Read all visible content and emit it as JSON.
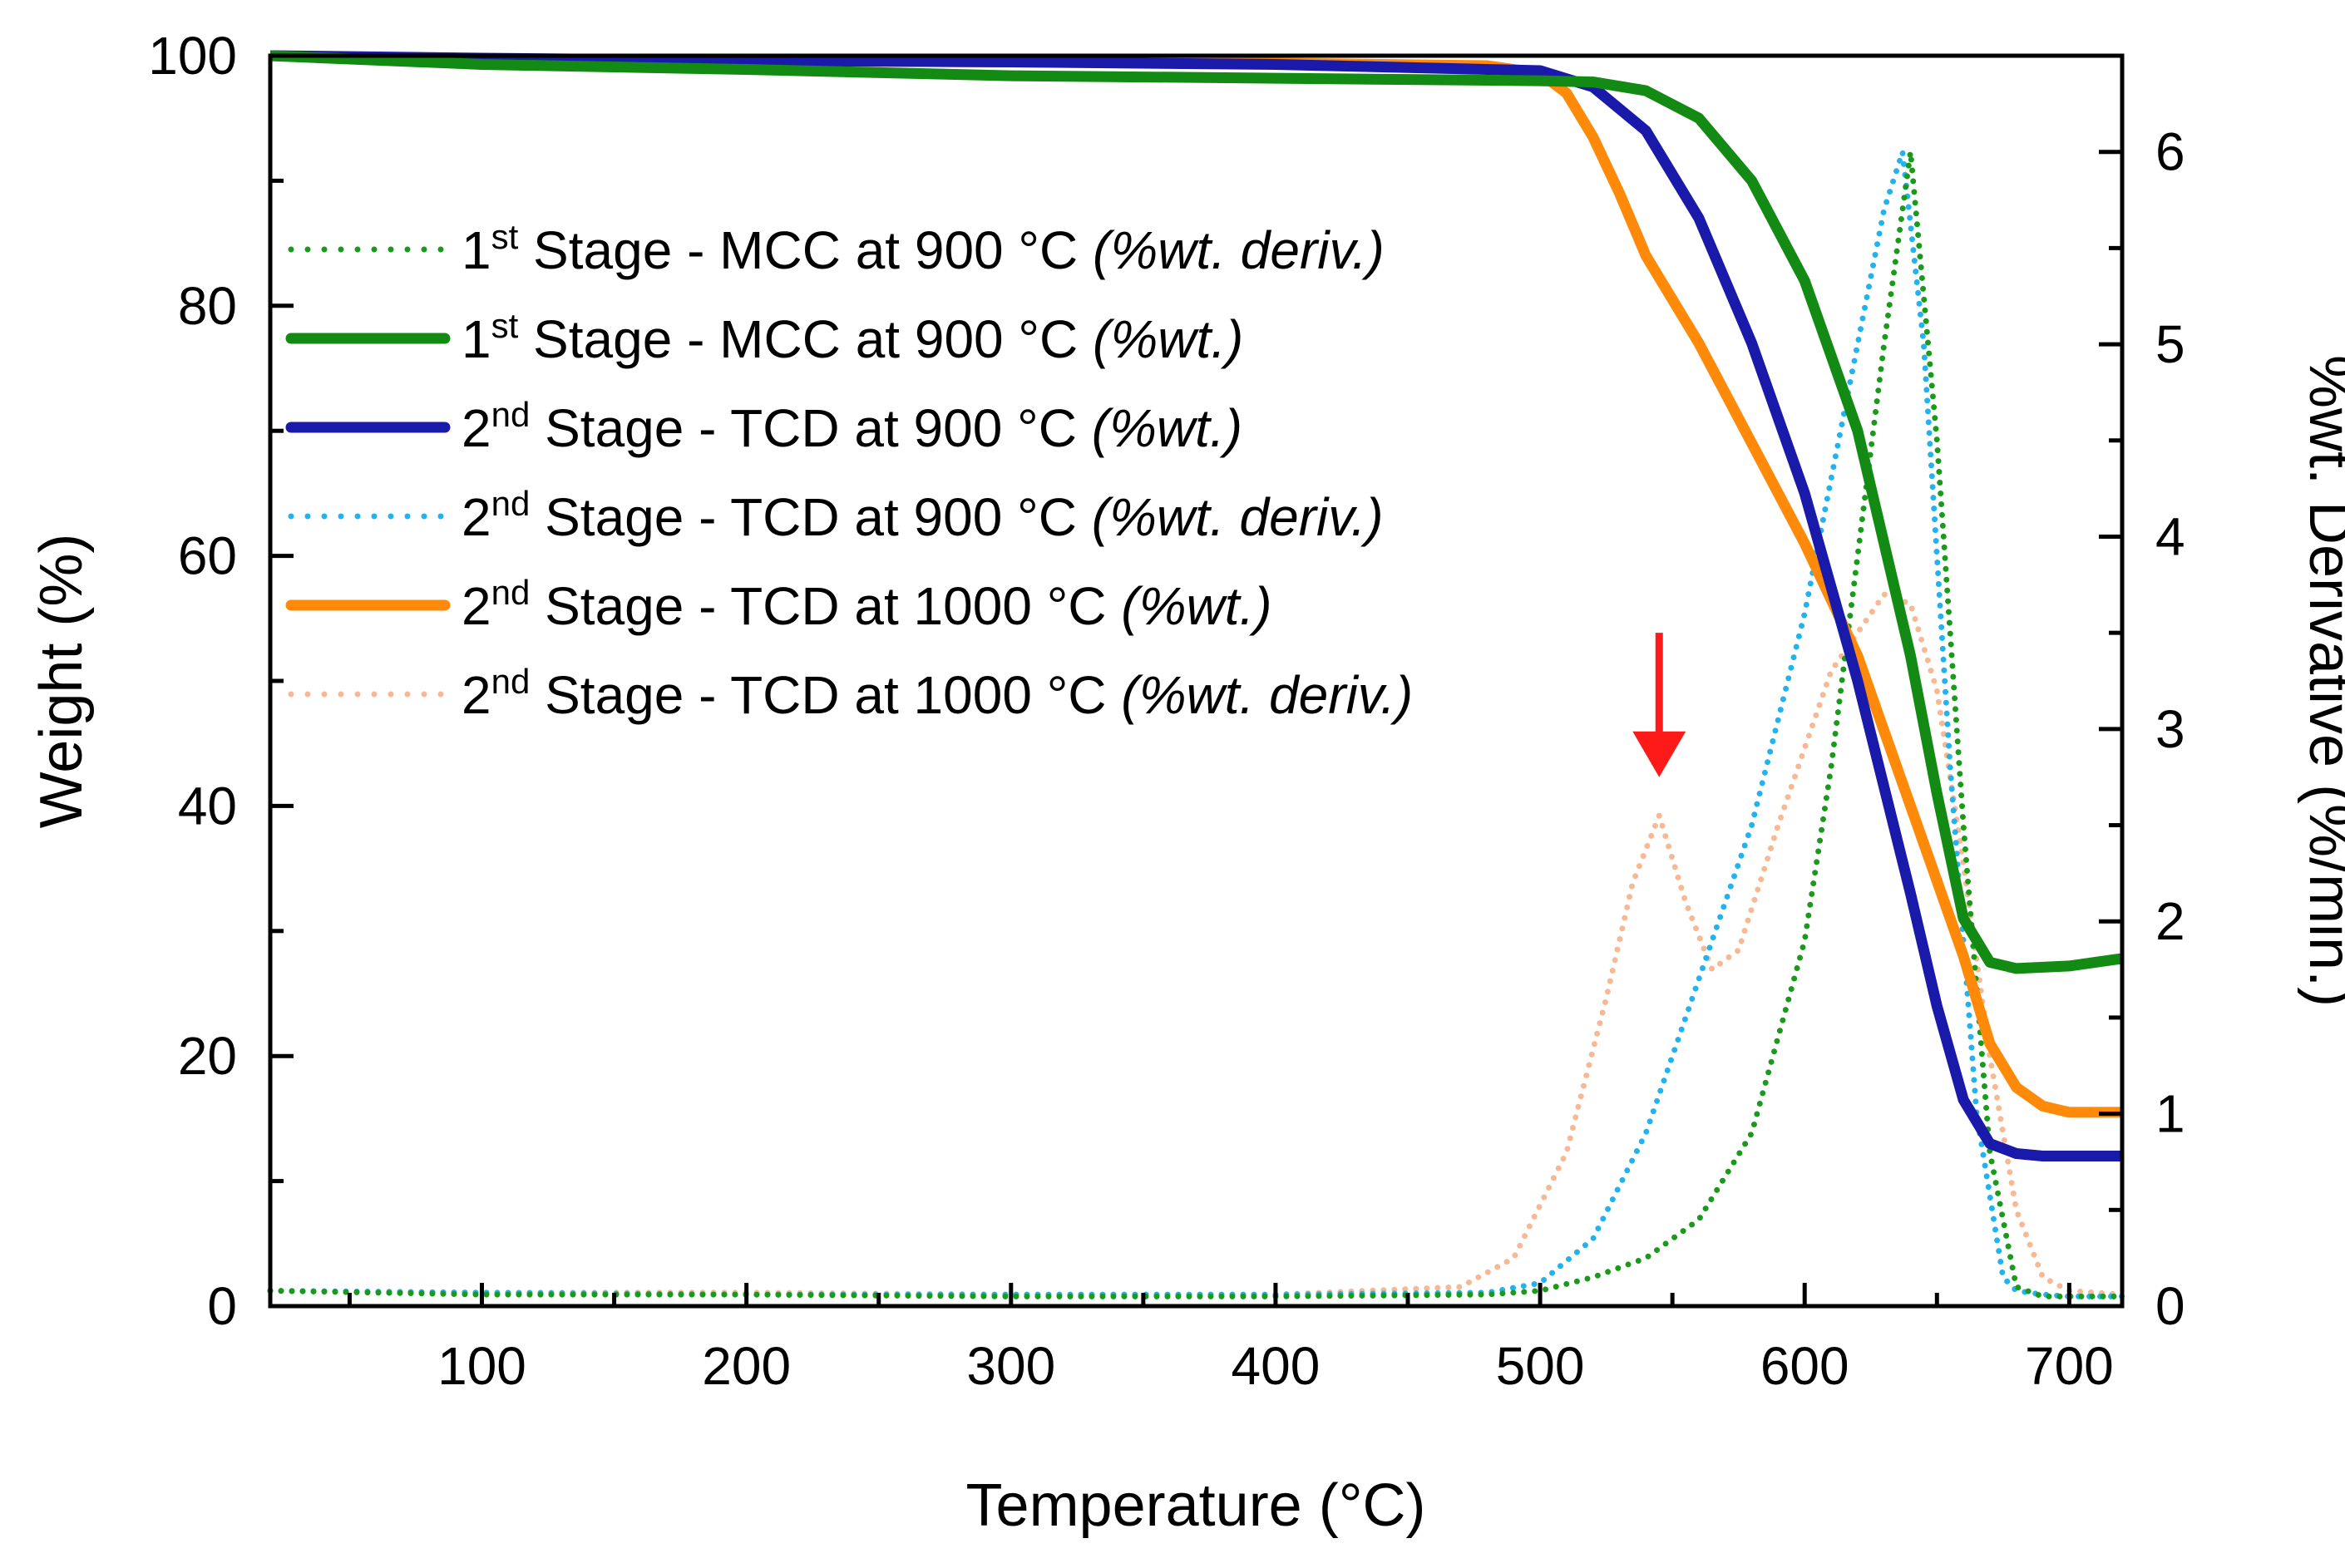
{
  "chart_data": {
    "type": "line",
    "xlabel": "Temperature (°C)",
    "ylabel": "Weight (%)",
    "y2label": "%wt. Derivative (%/min.)",
    "xlim": [
      20,
      720
    ],
    "ylim": [
      0,
      100
    ],
    "y2lim": [
      0,
      6.5
    ],
    "xticks": [
      100,
      200,
      300,
      400,
      500,
      600,
      700
    ],
    "yticks": [
      0,
      20,
      40,
      60,
      80,
      100
    ],
    "y2ticks": [
      0,
      1,
      2,
      3,
      4,
      5,
      6
    ],
    "legend_position": "upper-left",
    "series": [
      {
        "id": "mcc_deriv",
        "axis": "right",
        "style": "dotted",
        "color": "#1a9a1a",
        "label_prefix": "1",
        "label_sup": "st",
        "label_main": " Stage - MCC at 900 °C ",
        "label_note": "(%wt. deriv.)",
        "x": [
          20,
          100,
          200,
          300,
          400,
          480,
          500,
          520,
          540,
          560,
          580,
          600,
          610,
          620,
          630,
          640,
          650,
          660,
          670,
          680,
          690,
          700,
          720
        ],
        "y": [
          0.08,
          0.06,
          0.06,
          0.05,
          0.05,
          0.06,
          0.08,
          0.15,
          0.25,
          0.45,
          0.9,
          1.9,
          2.8,
          3.9,
          5.0,
          6.0,
          4.5,
          2.5,
          0.8,
          0.1,
          0.05,
          0.05,
          0.05
        ]
      },
      {
        "id": "mcc_wt",
        "axis": "left",
        "style": "solid",
        "color": "#138a13",
        "label_prefix": "1",
        "label_sup": "st",
        "label_main": " Stage - MCC at 900 °C ",
        "label_note": "(%wt.)",
        "x": [
          20,
          100,
          200,
          300,
          400,
          500,
          520,
          540,
          560,
          580,
          600,
          620,
          640,
          650,
          660,
          670,
          680,
          700,
          720
        ],
        "y": [
          100,
          99.3,
          98.9,
          98.4,
          98.2,
          98.0,
          97.9,
          97.2,
          95.0,
          90.0,
          82.0,
          70.0,
          52.0,
          41.0,
          31.0,
          27.5,
          27.0,
          27.2,
          27.8
        ]
      },
      {
        "id": "tcd900_wt",
        "axis": "left",
        "style": "solid",
        "color": "#1919aa",
        "label_prefix": "2",
        "label_sup": "nd",
        "label_main": " Stage - TCD at 900 °C ",
        "label_note": "(%wt.)",
        "x": [
          20,
          100,
          200,
          300,
          400,
          500,
          520,
          540,
          560,
          580,
          600,
          620,
          640,
          650,
          660,
          670,
          680,
          690,
          700,
          720
        ],
        "y": [
          100,
          99.8,
          99.6,
          99.5,
          99.3,
          98.8,
          97.5,
          94.0,
          87.0,
          77.0,
          65.0,
          50.0,
          33.0,
          24.0,
          16.5,
          13.0,
          12.2,
          12.0,
          12.0,
          12.0
        ]
      },
      {
        "id": "tcd900_deriv",
        "axis": "right",
        "style": "dotted",
        "color": "#22b2ee",
        "label_prefix": "2",
        "label_sup": "nd",
        "label_main": " Stage - TCD at 900 °C ",
        "label_note": "(%wt. deriv.)",
        "x": [
          20,
          100,
          200,
          300,
          400,
          480,
          500,
          520,
          540,
          550,
          560,
          580,
          600,
          620,
          630,
          637,
          645,
          655,
          665,
          675,
          680,
          690,
          700,
          720
        ],
        "y": [
          0.08,
          0.07,
          0.06,
          0.06,
          0.06,
          0.07,
          0.12,
          0.35,
          0.9,
          1.3,
          1.7,
          2.5,
          3.6,
          5.0,
          5.7,
          6.0,
          5.0,
          2.8,
          1.0,
          0.15,
          0.08,
          0.06,
          0.05,
          0.05
        ]
      },
      {
        "id": "tcd1000_wt",
        "axis": "left",
        "style": "solid",
        "color": "#ff8a0a",
        "label_prefix": "2",
        "label_sup": "nd",
        "label_main": " Stage - TCD at 1000 °C ",
        "label_note": "(%wt.)",
        "x": [
          20,
          100,
          200,
          300,
          400,
          480,
          500,
          510,
          520,
          530,
          540,
          560,
          580,
          600,
          620,
          640,
          660,
          670,
          680,
          690,
          700,
          720
        ],
        "y": [
          100,
          99.7,
          99.6,
          99.5,
          99.4,
          99.2,
          98.6,
          97.0,
          93.5,
          89.0,
          84.0,
          77.0,
          69.0,
          61.0,
          52.0,
          40.0,
          28.0,
          21.0,
          17.5,
          16.0,
          15.5,
          15.5
        ]
      },
      {
        "id": "tcd1000_deriv",
        "axis": "right",
        "style": "dotted",
        "color": "#f7b894",
        "label_prefix": "2",
        "label_sup": "nd",
        "label_main": " Stage - TCD at 1000 °C ",
        "label_note": "(%wt. deriv.)",
        "x": [
          20,
          100,
          200,
          300,
          400,
          470,
          490,
          510,
          525,
          535,
          545,
          555,
          565,
          575,
          590,
          610,
          630,
          640,
          650,
          660,
          670,
          680,
          690,
          700,
          720
        ],
        "y": [
          0.08,
          0.07,
          0.07,
          0.06,
          0.06,
          0.1,
          0.25,
          0.8,
          1.6,
          2.2,
          2.55,
          2.1,
          1.75,
          1.85,
          2.5,
          3.3,
          3.7,
          3.65,
          3.2,
          2.3,
          1.3,
          0.5,
          0.15,
          0.08,
          0.06
        ]
      }
    ],
    "annotations": [
      {
        "type": "arrow",
        "label": "",
        "x": 545,
        "y_start": 3.5,
        "y_end": 2.75,
        "axis": "right",
        "color": "#ff1a1a"
      }
    ]
  }
}
